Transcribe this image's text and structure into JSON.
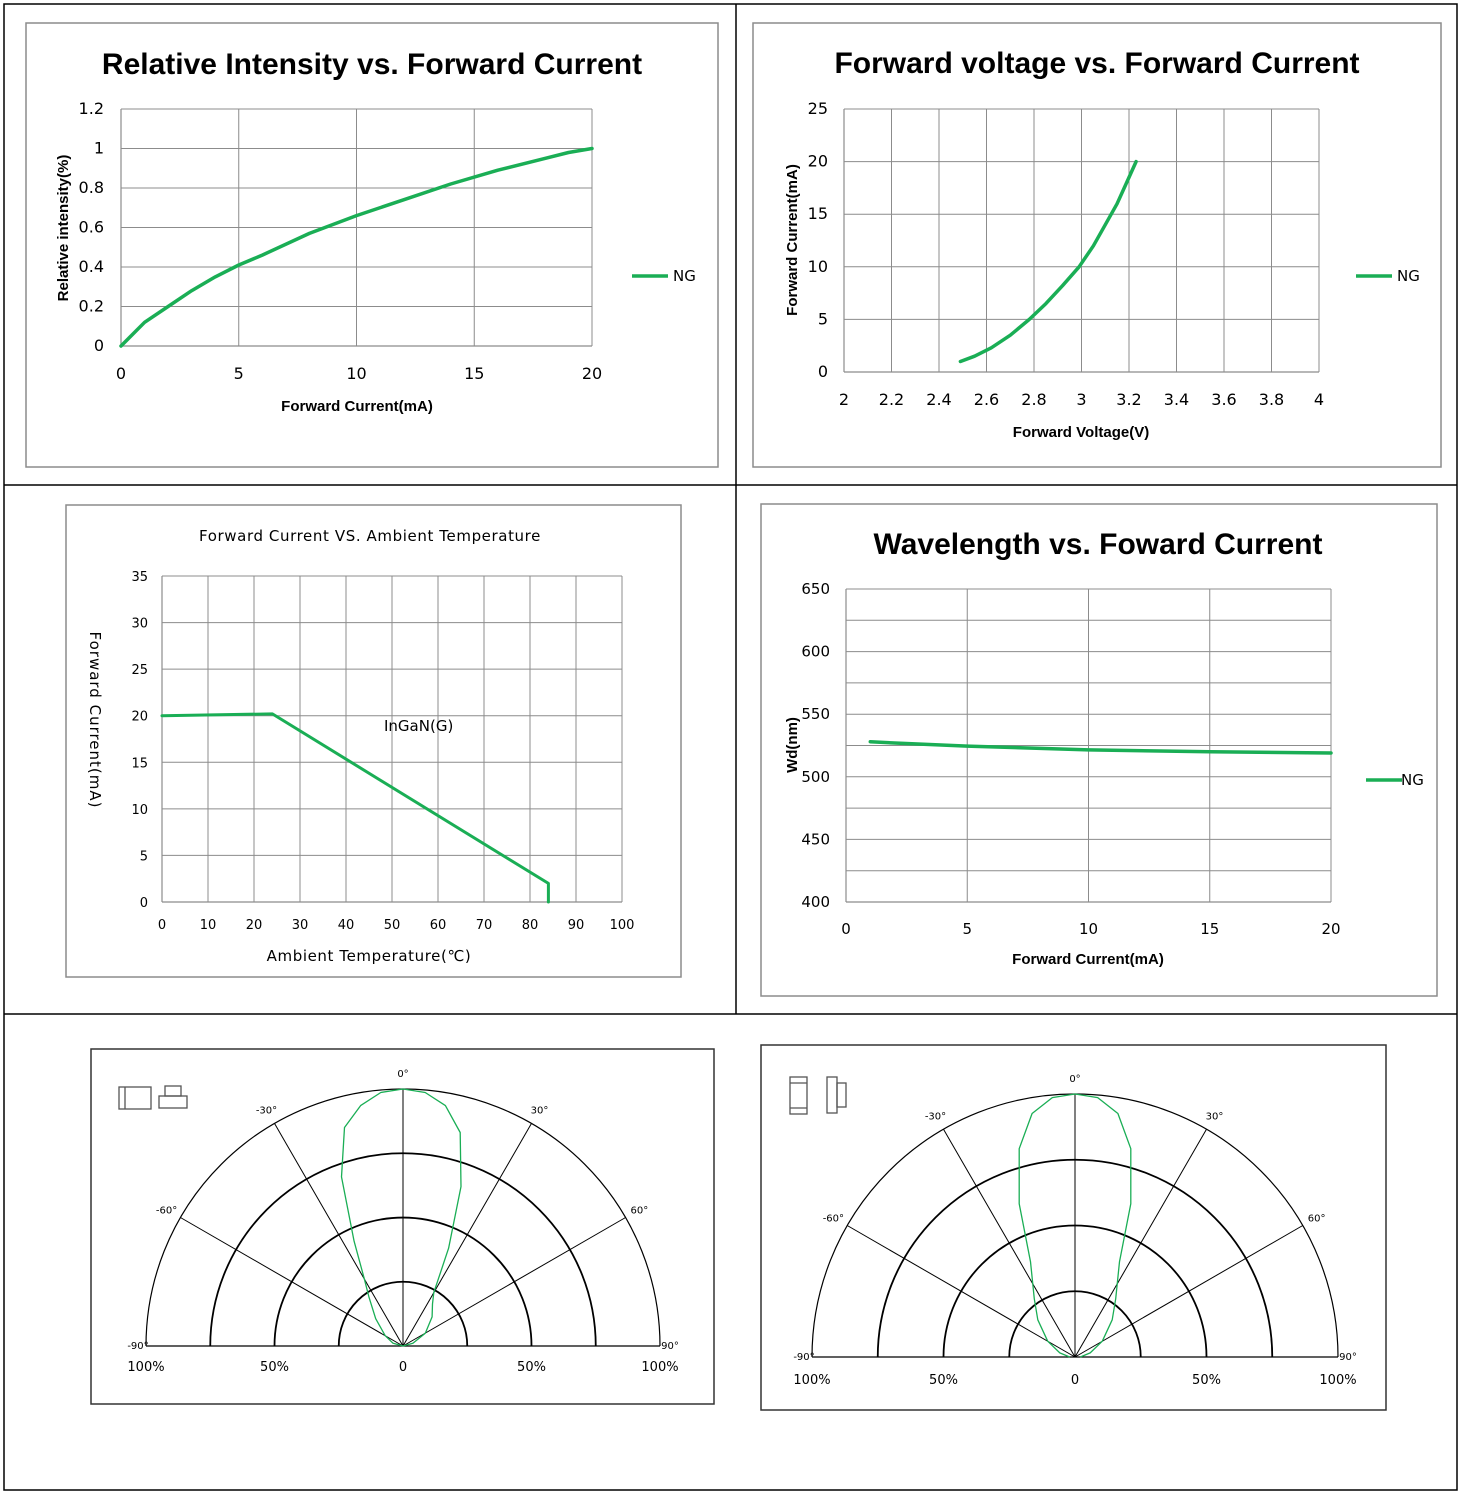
{
  "colors": {
    "series": "#1aae55",
    "polar": "#1aae55",
    "grid": "#8c8c8c",
    "border": "#000000"
  },
  "chart_data": [
    {
      "id": "c1",
      "type": "line",
      "title": "Relative Intensity vs. Forward Current",
      "xlabel": "Forward Current(mA)",
      "ylabel": "Relative intensity(%)",
      "xlim": [
        0,
        20
      ],
      "ylim": [
        0,
        1.2
      ],
      "xticks": [
        "0",
        "5",
        "10",
        "15",
        "20"
      ],
      "yticks": [
        "0",
        "0.2",
        "0.4",
        "0.6",
        "0.8",
        "1",
        "1.2"
      ],
      "legend": "right",
      "series": [
        {
          "name": "NG",
          "x": [
            0,
            1,
            2,
            3,
            4,
            5,
            6,
            8,
            10,
            12,
            14,
            16,
            18,
            19,
            20
          ],
          "y": [
            0,
            0.12,
            0.2,
            0.28,
            0.35,
            0.41,
            0.46,
            0.57,
            0.66,
            0.74,
            0.82,
            0.89,
            0.95,
            0.98,
            1.0
          ]
        }
      ]
    },
    {
      "id": "c2",
      "type": "line",
      "title": "Forward voltage vs. Forward Current",
      "xlabel": "Forward Voltage(V)",
      "ylabel": "Forward Current(mA)",
      "xlim": [
        2,
        4
      ],
      "ylim": [
        0,
        25
      ],
      "xticks": [
        "2",
        "2.2",
        "2.4",
        "2.6",
        "2.8",
        "3",
        "3.2",
        "3.4",
        "3.6",
        "3.8",
        "4"
      ],
      "yticks": [
        "0",
        "5",
        "10",
        "15",
        "20",
        "25"
      ],
      "legend": "right",
      "series": [
        {
          "name": "NG",
          "x": [
            2.49,
            2.55,
            2.62,
            2.7,
            2.78,
            2.85,
            2.92,
            2.99,
            3.05,
            3.1,
            3.15,
            3.2,
            3.23
          ],
          "y": [
            1,
            1.5,
            2.3,
            3.5,
            5,
            6.5,
            8.2,
            10,
            12,
            14,
            16,
            18.5,
            20
          ]
        }
      ]
    },
    {
      "id": "c3",
      "type": "line",
      "title": "Forward Current VS. Ambient Temperature",
      "xlabel": "Ambient Temperature(℃)",
      "ylabel": "Forward Current(mA)",
      "xlim": [
        0,
        100
      ],
      "ylim": [
        0,
        35
      ],
      "xticks": [
        "0",
        "10",
        "20",
        "30",
        "40",
        "50",
        "60",
        "70",
        "80",
        "90",
        "100"
      ],
      "yticks": [
        "0",
        "5",
        "10",
        "15",
        "20",
        "25",
        "30",
        "35"
      ],
      "annotation": "InGaN(G)",
      "series": [
        {
          "x": [
            0,
            24,
            84,
            84
          ],
          "y": [
            20,
            20.2,
            2,
            0
          ]
        }
      ]
    },
    {
      "id": "c4",
      "type": "line",
      "title": "Wavelength vs. Foward Current",
      "xlabel": "Forward Current(mA)",
      "ylabel": "Wd(nm)",
      "xlim": [
        0,
        20
      ],
      "ylim": [
        400,
        650
      ],
      "xticks": [
        "0",
        "5",
        "10",
        "15",
        "20"
      ],
      "yticks": [
        "400",
        "450",
        "500",
        "550",
        "600",
        "650"
      ],
      "legend": "right",
      "series": [
        {
          "name": "NG",
          "x": [
            1,
            2,
            5,
            10,
            15,
            20
          ],
          "y": [
            528,
            527,
            524.5,
            521.5,
            520,
            519
          ]
        }
      ]
    },
    {
      "id": "p1",
      "type": "polar",
      "angle_labels": [
        "-90°",
        "-60°",
        "-30°",
        "0°",
        "30°",
        "60°",
        "90°"
      ],
      "radial_labels": [
        "100%",
        "50%",
        "0",
        "50%",
        "100%"
      ],
      "series": [
        {
          "theta": [
            -90,
            -75,
            -60,
            -45,
            -35,
            -30,
            -25,
            -20,
            -15,
            -10,
            -5,
            0,
            5,
            10,
            15,
            20,
            25,
            30,
            35,
            45,
            60,
            75,
            90
          ],
          "r": [
            0,
            0.04,
            0.08,
            0.15,
            0.23,
            0.3,
            0.45,
            0.7,
            0.88,
            0.95,
            0.99,
            1.0,
            0.99,
            0.95,
            0.86,
            0.66,
            0.42,
            0.24,
            0.2,
            0.16,
            0.1,
            0.04,
            0
          ]
        }
      ]
    },
    {
      "id": "p2",
      "type": "polar",
      "angle_labels": [
        "-90°",
        "-60°",
        "-30°",
        "0°",
        "30°",
        "60°",
        "90°"
      ],
      "radial_labels": [
        "100%",
        "50%",
        "0",
        "50%",
        "100%"
      ],
      "series": [
        {
          "theta": [
            -90,
            -75,
            -60,
            -45,
            -35,
            -25,
            -20,
            -15,
            -10,
            -5,
            0,
            5,
            10,
            15,
            20,
            25,
            35,
            45,
            60,
            75,
            90
          ],
          "r": [
            0.02,
            0.06,
            0.12,
            0.2,
            0.27,
            0.4,
            0.62,
            0.82,
            0.94,
            0.99,
            1.0,
            0.99,
            0.94,
            0.82,
            0.62,
            0.4,
            0.27,
            0.2,
            0.12,
            0.06,
            0.02
          ]
        }
      ]
    }
  ]
}
